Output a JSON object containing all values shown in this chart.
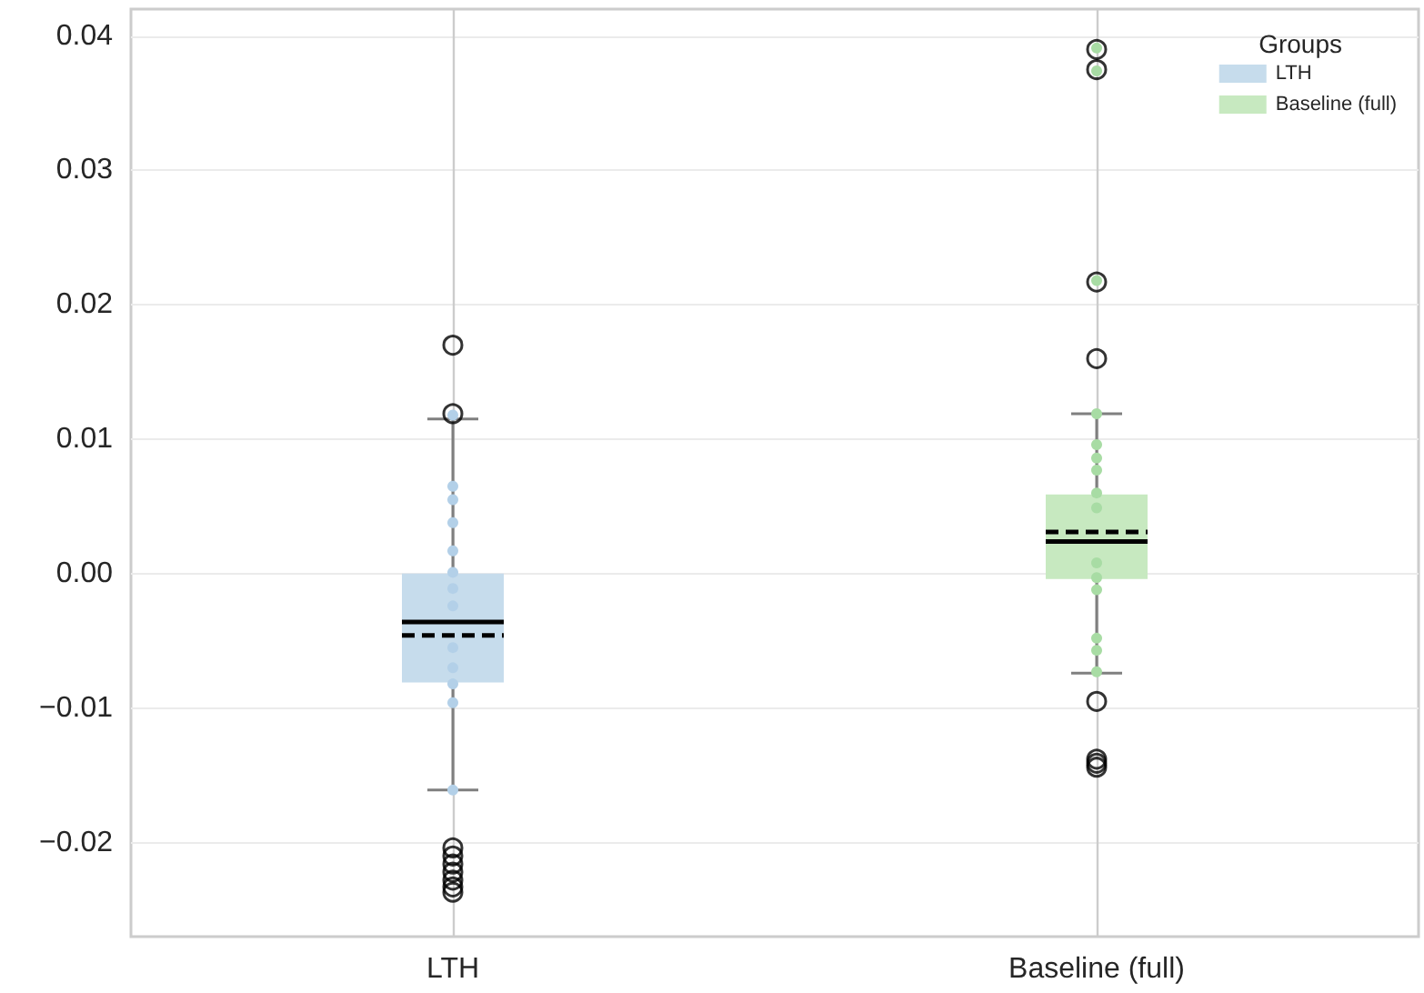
{
  "chart_data": {
    "type": "box",
    "categories": [
      "LTH",
      "Baseline (full)"
    ],
    "series": [
      {
        "type": "box",
        "name": "LTH",
        "color": "#c6dcec",
        "boxes": [
          {
            "low": -0.0161,
            "q1": -0.0081,
            "median": -0.0036,
            "q3": 0.0,
            "high": 0.0115,
            "mean": -0.0046,
            "outliers": [
              0.017,
              0.0119,
              -0.0204,
              -0.021,
              -0.0216,
              -0.0222,
              -0.0228,
              -0.0233,
              -0.0237
            ]
          },
          null
        ]
      },
      {
        "type": "box",
        "name": "Baseline (full)",
        "color": "#c7e9c0",
        "boxes": [
          null,
          {
            "low": -0.0074,
            "q1": -0.0004,
            "median": 0.0024,
            "q3": 0.0059,
            "high": 0.0119,
            "mean": 0.0031,
            "outliers": [
              0.039,
              0.0375,
              0.0217,
              0.016,
              -0.0095,
              -0.0138,
              -0.0141,
              -0.0144
            ]
          }
        ]
      },
      {
        "type": "scatter",
        "color": "#b3d0e8",
        "x": [
          "LTH",
          "LTH",
          "LTH",
          "LTH",
          "LTH",
          "LTH",
          "LTH",
          "LTH",
          "LTH",
          "LTH",
          "LTH",
          "LTH",
          "LTH"
        ],
        "values": [
          0.0118,
          0.0065,
          0.0055,
          0.0038,
          0.0017,
          0.0001,
          -0.0011,
          -0.0024,
          -0.0055,
          -0.007,
          -0.0082,
          -0.0096,
          -0.0161
        ]
      },
      {
        "type": "scatter",
        "color": "#a8dca4",
        "x": [
          "Baseline (full)",
          "Baseline (full)",
          "Baseline (full)",
          "Baseline (full)",
          "Baseline (full)",
          "Baseline (full)",
          "Baseline (full)",
          "Baseline (full)",
          "Baseline (full)",
          "Baseline (full)",
          "Baseline (full)",
          "Baseline (full)",
          "Baseline (full)",
          "Baseline (full)",
          "Baseline (full)"
        ],
        "values": [
          0.0391,
          0.0374,
          0.0218,
          0.0119,
          0.0096,
          0.0086,
          0.0077,
          0.006,
          0.0049,
          0.0008,
          -0.0003,
          -0.0012,
          -0.0048,
          -0.0057,
          -0.0073
        ]
      }
    ],
    "ylim": [
      -0.027,
      0.042
    ],
    "yticks": [
      {
        "value": -0.02,
        "label": "−0.02"
      },
      {
        "value": -0.01,
        "label": "−0.01"
      },
      {
        "value": 0,
        "label": "0.00"
      },
      {
        "value": 0.01,
        "label": "0.01"
      },
      {
        "value": 0.02,
        "label": "0.02"
      },
      {
        "value": 0.03,
        "label": "0.03"
      },
      {
        "value": 0.04,
        "label": "0.04"
      }
    ],
    "grid": true,
    "legend": "top right",
    "legend_title": "Groups"
  }
}
